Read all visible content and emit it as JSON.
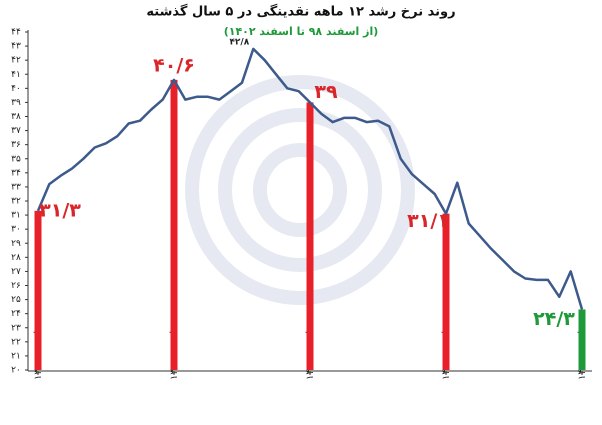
{
  "chart_data": {
    "type": "line",
    "title": "روند نرخ رشد ۱۲ ماهه نقدینگی در ۵ سال گذشته",
    "subtitle": "(از اسفند ۹۸ تا اسفند ۱۴۰۲)",
    "categories": [
      "اسفند ۱۳۹۸",
      null,
      null,
      null,
      null,
      null,
      null,
      null,
      null,
      null,
      null,
      null,
      "اسفند ۱۳۹۹",
      null,
      null,
      null,
      null,
      null,
      null,
      null,
      null,
      null,
      null,
      null,
      "اسفند ۱۴۰۰",
      null,
      null,
      null,
      null,
      null,
      null,
      null,
      null,
      null,
      null,
      null,
      "اسفند ۱۴۰۱",
      null,
      null,
      null,
      null,
      null,
      null,
      null,
      null,
      null,
      null,
      null,
      "اسفند ۱۴۰۲"
    ],
    "values": [
      31.3,
      33.2,
      33.8,
      34.3,
      35,
      35.8,
      36.1,
      36.6,
      37.5,
      37.7,
      38.5,
      39.2,
      40.6,
      39.2,
      39.4,
      39.4,
      39.2,
      39.8,
      40.4,
      42.8,
      42,
      41,
      40,
      39.8,
      39,
      38.2,
      37.6,
      37.9,
      37.9,
      37.6,
      37.7,
      37.3,
      35,
      33.9,
      33.2,
      32.5,
      31.1,
      33.3,
      30.4,
      29.5,
      28.6,
      27.8,
      27,
      26.5,
      26.4,
      26.4,
      25.2,
      27,
      24.3
    ],
    "value_labels": [
      "۳۱/۳",
      null,
      null,
      null,
      null,
      null,
      null,
      null,
      null,
      null,
      null,
      null,
      "۴۰/۶",
      null,
      null,
      null,
      null,
      null,
      null,
      "۴۲/۸",
      null,
      null,
      null,
      null,
      "۳۹",
      null,
      null,
      null,
      null,
      null,
      null,
      null,
      null,
      null,
      null,
      null,
      "۳۱/۱",
      null,
      null,
      null,
      null,
      null,
      null,
      null,
      null,
      null,
      null,
      null,
      "۲۴/۳"
    ],
    "label_colors": [
      "#d9262a",
      null,
      null,
      null,
      null,
      null,
      null,
      null,
      null,
      null,
      null,
      null,
      "#d9262a",
      null,
      null,
      null,
      null,
      null,
      null,
      "#222222",
      null,
      null,
      null,
      null,
      "#d9262a",
      null,
      null,
      null,
      null,
      null,
      null,
      null,
      null,
      null,
      null,
      null,
      "#d9262a",
      null,
      null,
      null,
      null,
      null,
      null,
      null,
      null,
      null,
      null,
      null,
      "#1e9a3a"
    ],
    "drop_bar_colors": [
      "#e8202a",
      null,
      null,
      null,
      null,
      null,
      null,
      null,
      null,
      null,
      null,
      null,
      "#e8202a",
      null,
      null,
      null,
      null,
      null,
      null,
      null,
      null,
      null,
      null,
      null,
      "#e8202a",
      null,
      null,
      null,
      null,
      null,
      null,
      null,
      null,
      null,
      null,
      null,
      "#e8202a",
      null,
      null,
      null,
      null,
      null,
      null,
      null,
      null,
      null,
      null,
      null,
      "#1e9a3a"
    ],
    "color": "#3d5a8c",
    "ylim": [
      20,
      44
    ],
    "yticks": [
      {
        "value": 20,
        "label": "۲۰"
      },
      {
        "value": 21,
        "label": "۲۱"
      },
      {
        "value": 22,
        "label": "۲۲"
      },
      {
        "value": 23,
        "label": "۲۳"
      },
      {
        "value": 24,
        "label": "۲۴"
      },
      {
        "value": 25,
        "label": "۲۵"
      },
      {
        "value": 26,
        "label": "۲۶"
      },
      {
        "value": 27,
        "label": "۲۷"
      },
      {
        "value": 28,
        "label": "۲۸"
      },
      {
        "value": 29,
        "label": "۲۹"
      },
      {
        "value": 30,
        "label": "۳۰"
      },
      {
        "value": 31,
        "label": "۳۱"
      },
      {
        "value": 32,
        "label": "۳۲"
      },
      {
        "value": 33,
        "label": "۳۳"
      },
      {
        "value": 34,
        "label": "۳۴"
      },
      {
        "value": 35,
        "label": "۳۵"
      },
      {
        "value": 36,
        "label": "۳۶"
      },
      {
        "value": 37,
        "label": "۳۷"
      },
      {
        "value": 38,
        "label": "۳۸"
      },
      {
        "value": 39,
        "label": "۳۹"
      },
      {
        "value": 40,
        "label": "۴۰"
      },
      {
        "value": 41,
        "label": "۴۱"
      },
      {
        "value": 42,
        "label": "۴۲"
      },
      {
        "value": 43,
        "label": "۴۳"
      },
      {
        "value": 44,
        "label": "۴۴"
      }
    ],
    "grid": false
  }
}
